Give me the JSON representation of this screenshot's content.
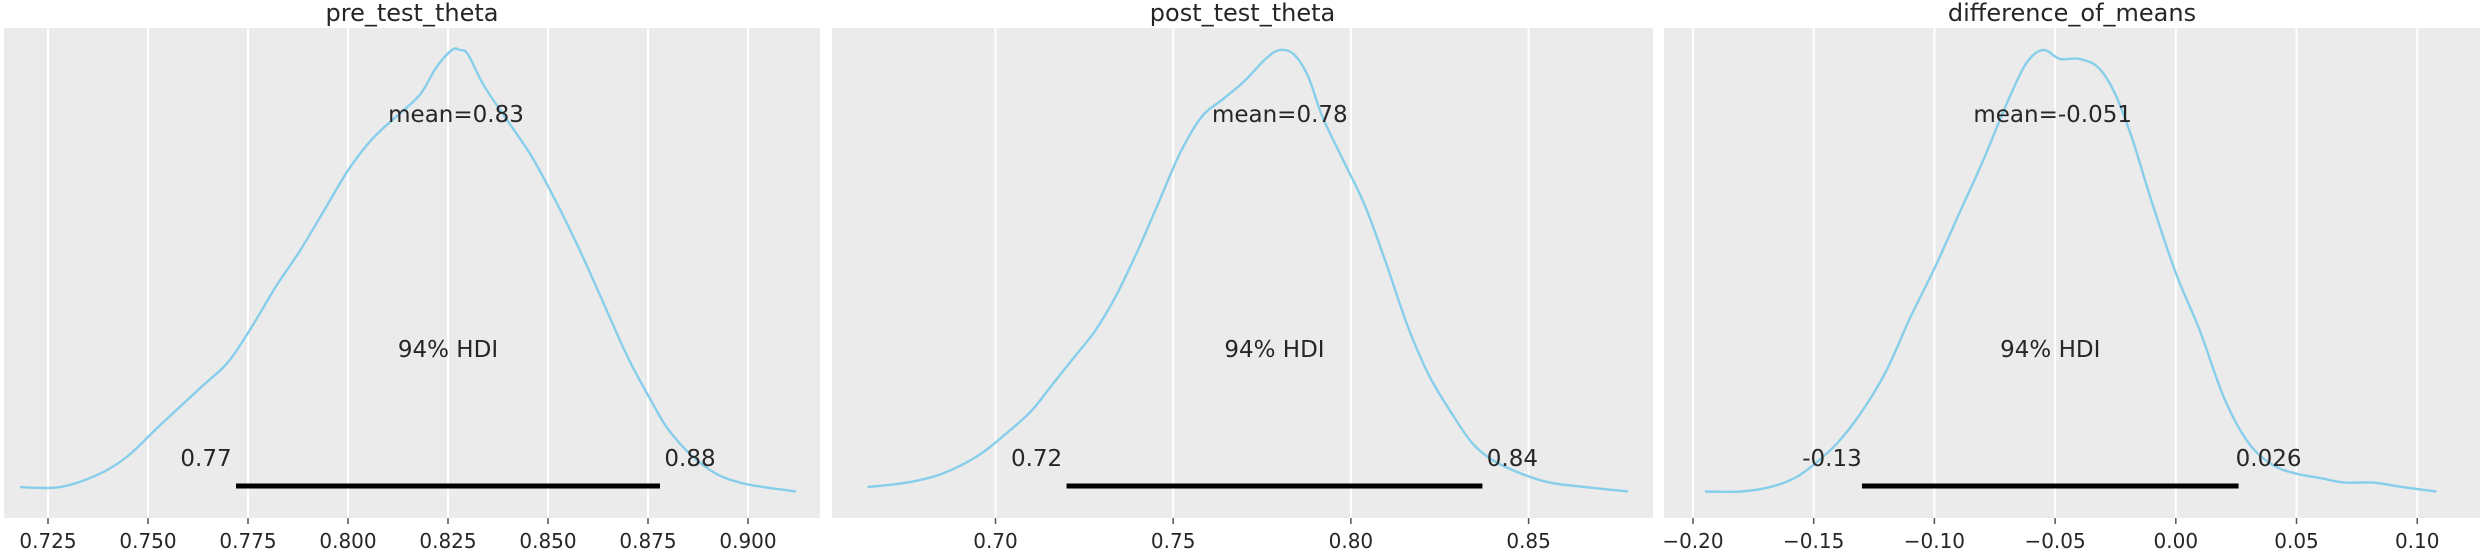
{
  "chart_data": [
    {
      "type": "area",
      "title": "pre_test_theta",
      "xlim": [
        0.714,
        0.918
      ],
      "ticks": [
        0.725,
        0.75,
        0.775,
        0.8,
        0.825,
        0.85,
        0.875,
        0.9
      ],
      "tick_labels": [
        "0.725",
        "0.750",
        "0.775",
        "0.800",
        "0.825",
        "0.850",
        "0.875",
        "0.900"
      ],
      "mean_label": "mean=0.83",
      "mean": 0.827,
      "hdi_label": "94% HDI",
      "hdi": [
        0.772,
        0.878
      ],
      "hdi_low_label": "0.77",
      "hdi_high_label": "0.88",
      "density": {
        "x": [
          0.718,
          0.728,
          0.738,
          0.745,
          0.752,
          0.758,
          0.764,
          0.77,
          0.776,
          0.782,
          0.788,
          0.794,
          0.8,
          0.806,
          0.812,
          0.818,
          0.822,
          0.826,
          0.828,
          0.83,
          0.834,
          0.84,
          0.846,
          0.852,
          0.858,
          0.864,
          0.87,
          0.876,
          0.88,
          0.886,
          0.892,
          0.898,
          0.904,
          0.912
        ],
        "y": [
          0.02,
          0.02,
          0.05,
          0.09,
          0.15,
          0.2,
          0.25,
          0.3,
          0.38,
          0.47,
          0.55,
          0.64,
          0.73,
          0.8,
          0.85,
          0.9,
          0.96,
          1.0,
          1.0,
          0.99,
          0.92,
          0.84,
          0.76,
          0.66,
          0.55,
          0.43,
          0.31,
          0.21,
          0.15,
          0.09,
          0.05,
          0.03,
          0.02,
          0.01
        ]
      }
    },
    {
      "type": "area",
      "title": "post_test_theta",
      "xlim": [
        0.654,
        0.885
      ],
      "ticks": [
        0.7,
        0.75,
        0.8,
        0.85
      ],
      "tick_labels": [
        "0.70",
        "0.75",
        "0.80",
        "0.85"
      ],
      "mean_label": "mean=0.78",
      "mean": 0.78,
      "hdi_label": "94% HDI",
      "hdi": [
        0.72,
        0.837
      ],
      "hdi_low_label": "0.72",
      "hdi_high_label": "0.84",
      "density": {
        "x": [
          0.664,
          0.675,
          0.685,
          0.695,
          0.703,
          0.71,
          0.716,
          0.722,
          0.728,
          0.734,
          0.74,
          0.746,
          0.752,
          0.758,
          0.764,
          0.77,
          0.776,
          0.78,
          0.784,
          0.788,
          0.792,
          0.798,
          0.804,
          0.81,
          0.816,
          0.822,
          0.828,
          0.834,
          0.84,
          0.848,
          0.856,
          0.866,
          0.878
        ],
        "y": [
          0.02,
          0.03,
          0.05,
          0.09,
          0.14,
          0.19,
          0.25,
          0.31,
          0.37,
          0.45,
          0.55,
          0.66,
          0.77,
          0.85,
          0.89,
          0.93,
          0.98,
          1.0,
          0.99,
          0.94,
          0.85,
          0.75,
          0.65,
          0.52,
          0.38,
          0.27,
          0.19,
          0.12,
          0.08,
          0.05,
          0.03,
          0.02,
          0.01
        ]
      }
    },
    {
      "type": "area",
      "title": "difference_of_means",
      "xlim": [
        -0.212,
        0.126
      ],
      "ticks": [
        -0.2,
        -0.15,
        -0.1,
        -0.05,
        0.0,
        0.05,
        0.1
      ],
      "tick_labels": [
        "−0.20",
        "−0.15",
        "−0.10",
        "−0.05",
        "0.00",
        "0.05",
        "0.10"
      ],
      "mean_label": "mean=-0.051",
      "mean": -0.051,
      "hdi_label": "94% HDI",
      "hdi": [
        -0.13,
        0.026
      ],
      "hdi_low_label": "-0.13",
      "hdi_high_label": "0.026",
      "density": {
        "x": [
          -0.195,
          -0.18,
          -0.168,
          -0.158,
          -0.15,
          -0.14,
          -0.13,
          -0.12,
          -0.11,
          -0.1,
          -0.09,
          -0.08,
          -0.07,
          -0.062,
          -0.055,
          -0.048,
          -0.04,
          -0.032,
          -0.025,
          -0.018,
          -0.01,
          0.0,
          0.01,
          0.02,
          0.03,
          0.04,
          0.05,
          0.06,
          0.07,
          0.082,
          0.094,
          0.108
        ],
        "y": [
          0.01,
          0.01,
          0.02,
          0.04,
          0.07,
          0.12,
          0.19,
          0.28,
          0.4,
          0.51,
          0.63,
          0.75,
          0.88,
          0.97,
          1.0,
          0.98,
          0.98,
          0.96,
          0.9,
          0.8,
          0.66,
          0.5,
          0.37,
          0.22,
          0.12,
          0.07,
          0.05,
          0.04,
          0.03,
          0.03,
          0.02,
          0.01
        ]
      }
    }
  ]
}
